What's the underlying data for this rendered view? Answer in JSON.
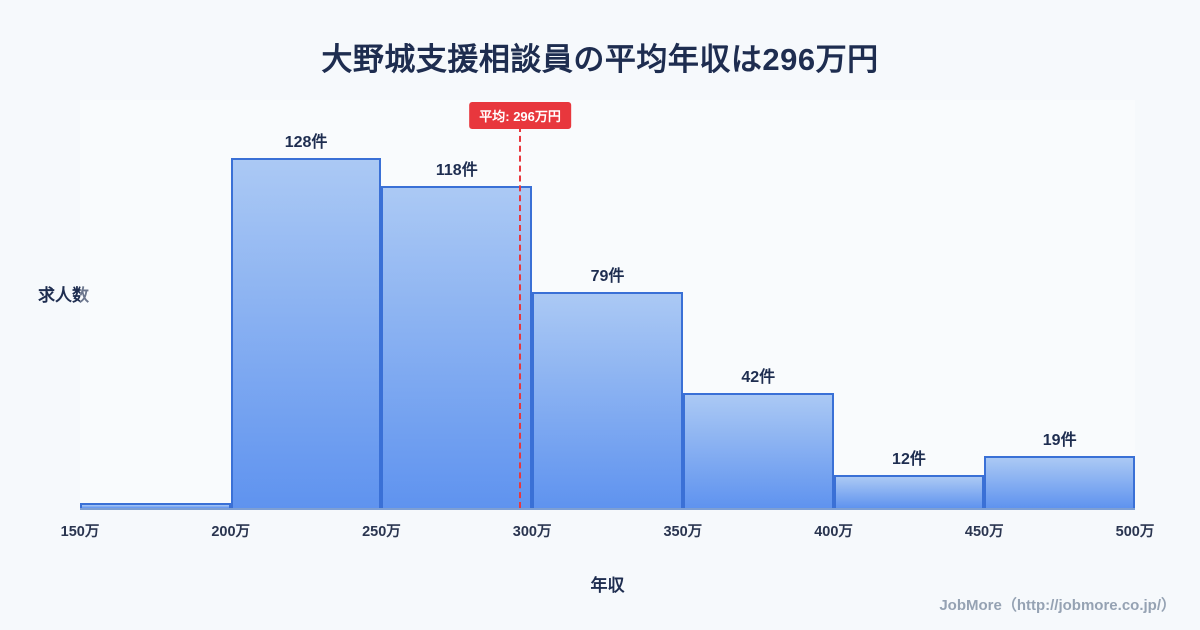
{
  "header": {
    "title": "大野城支援相談員の平均年収は296万円"
  },
  "footer": {
    "credit": "JobMore（http://jobmore.co.jp/）"
  },
  "chart_data": {
    "type": "bar",
    "title": "大野城支援相談員の平均年収は296万円",
    "xlabel": "年収",
    "ylabel": "求人数",
    "x_ticks": [
      "150万",
      "200万",
      "250万",
      "300万",
      "350万",
      "400万",
      "450万",
      "500万"
    ],
    "x_range": [
      150,
      500
    ],
    "ylim": [
      0,
      150
    ],
    "grid": false,
    "legend": false,
    "bins": [
      {
        "range": "150万-200万",
        "value": 2,
        "label": ""
      },
      {
        "range": "200万-250万",
        "value": 128,
        "label": "128件"
      },
      {
        "range": "250万-300万",
        "value": 118,
        "label": "118件"
      },
      {
        "range": "300万-350万",
        "value": 79,
        "label": "79件"
      },
      {
        "range": "350万-400万",
        "value": 42,
        "label": "42件"
      },
      {
        "range": "400万-450万",
        "value": 12,
        "label": "12件"
      },
      {
        "range": "450万-500万",
        "value": 19,
        "label": "19件"
      }
    ],
    "average": {
      "value": 296,
      "label": "平均: 296万円"
    },
    "colors": {
      "background": "#f6f9fc",
      "title_text": "#1e2d50",
      "bar_gradient_top": "#abc9f4",
      "bar_gradient_bottom": "#5f93ef",
      "bar_border": "#3a70d6",
      "average_line": "#e8373d",
      "average_badge_bg": "#e8373d",
      "average_badge_text": "#ffffff",
      "axis": "#7d9fd4",
      "footer_text": "#95a2b3"
    }
  }
}
